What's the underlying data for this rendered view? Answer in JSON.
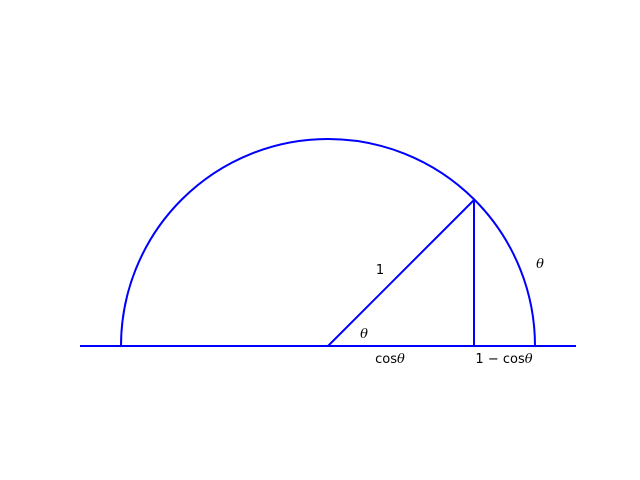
{
  "diagram": {
    "stroke_color": "#0000ff",
    "text_color": "#000000",
    "labels": {
      "radius": "1",
      "angle_at_center": "θ",
      "arc_angle": "θ",
      "cos_prefix": "cos",
      "cos_theta": "θ",
      "one_minus_prefix": "1 − cos",
      "one_minus_theta": "θ"
    }
  }
}
